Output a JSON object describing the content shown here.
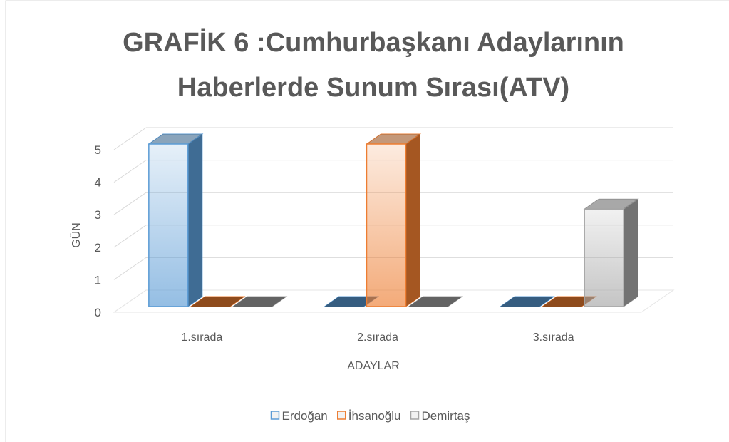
{
  "chart_data": {
    "type": "bar3d",
    "title": [
      "GRAFİK 6 :Cumhurbaşkanı  Adaylarının",
      "Haberlerde Sunum Sırası(ATV)"
    ],
    "xlabel": "ADAYLAR",
    "ylabel": "GÜN",
    "categories": [
      "1.sırada",
      "2.sırada",
      "3.sırada"
    ],
    "series": [
      {
        "name": "Erdoğan",
        "color": "#5b9bd5",
        "values": [
          5,
          0,
          0
        ]
      },
      {
        "name": "İhsanoğlu",
        "color": "#ed7d31",
        "values": [
          0,
          5,
          0
        ]
      },
      {
        "name": "Demirtaş",
        "color": "#a5a5a5",
        "values": [
          0,
          0,
          3
        ]
      }
    ],
    "ylim": [
      0,
      5
    ],
    "yticks": [
      0,
      1,
      2,
      3,
      4,
      5
    ],
    "grid": true,
    "legend": "bottom"
  }
}
